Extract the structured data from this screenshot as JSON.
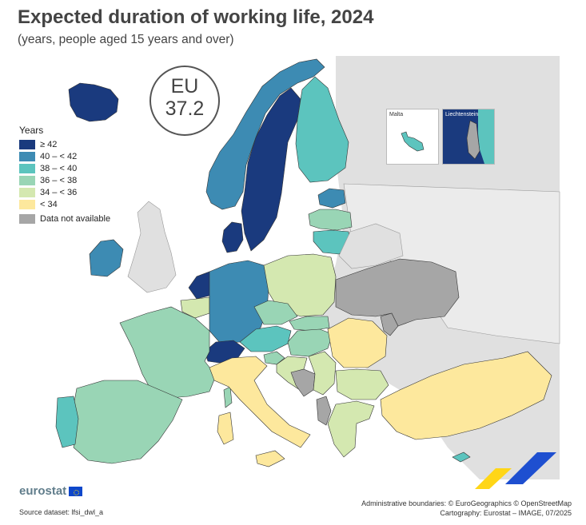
{
  "title": "Expected duration of working life, 2024",
  "subtitle": "(years, people aged 15 years and over)",
  "eu_badge": {
    "label": "EU",
    "value": "37.2"
  },
  "legend": {
    "title": "Years",
    "items": [
      {
        "label": "≥ 42",
        "color": "#1a3a7e"
      },
      {
        "label": "40 – < 42",
        "color": "#3d8bb3"
      },
      {
        "label": "38 – < 40",
        "color": "#5cc4be"
      },
      {
        "label": "36 – < 38",
        "color": "#99d5b5"
      },
      {
        "label": "34 – < 36",
        "color": "#d4e8b0"
      },
      {
        "label": "< 34",
        "color": "#fde89d"
      }
    ],
    "na": {
      "label": "Data not available",
      "color": "#a6a6a6"
    }
  },
  "insets": {
    "malta": "Malta",
    "liechtenstein": "Liechtenstein"
  },
  "map_data": {
    "country_classes": {
      "Iceland": "≥ 42",
      "Sweden": "≥ 42",
      "Netherlands": "≥ 42",
      "Denmark": "≥ 42",
      "Switzerland": "≥ 42",
      "Liechtenstein": "≥ 42",
      "Norway": "40 – < 42",
      "Ireland": "40 – < 42",
      "Germany": "40 – < 42",
      "Estonia": "40 – < 42",
      "Finland": "38 – < 40",
      "Portugal": "38 – < 40",
      "Lithuania": "38 – < 40",
      "Austria": "38 – < 40",
      "Malta": "38 – < 40",
      "Cyprus": "38 – < 40",
      "France": "36 – < 38",
      "Spain": "36 – < 38",
      "Latvia": "36 – < 38",
      "Czechia": "36 – < 38",
      "Slovakia": "36 – < 38",
      "Hungary": "36 – < 38",
      "Slovenia": "36 – < 38",
      "Poland": "34 – < 36",
      "Belgium": "34 – < 36",
      "Greece": "34 – < 36",
      "Bulgaria": "34 – < 36",
      "Croatia": "34 – < 36",
      "Serbia": "34 – < 36",
      "Italy": "< 34",
      "Romania": "< 34",
      "Türkiye": "< 34",
      "United Kingdom": "Data not available",
      "Ukraine": "Data not available",
      "Belarus": "Data not available",
      "Moldova": "Data not available",
      "Bosnia and Herzegovina": "Data not available",
      "Albania": "Data not available"
    }
  },
  "branding": {
    "logo": "eurostat"
  },
  "source": "Source dataset: lfsi_dwl_a",
  "credits": [
    "Administrative boundaries: © EuroGeographics © OpenStreetMap",
    "Cartography: Eurostat – IMAGE, 07/2025"
  ]
}
